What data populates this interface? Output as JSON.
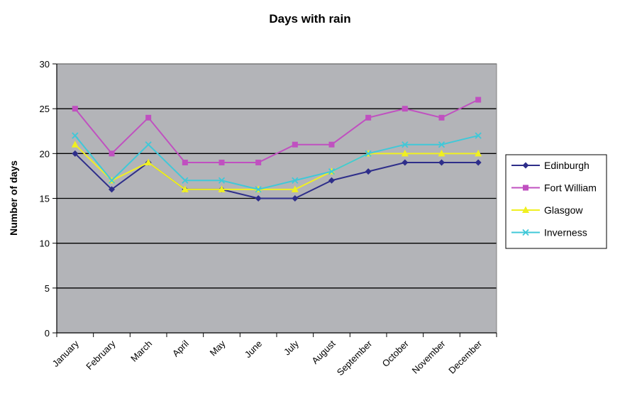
{
  "chart_data": {
    "type": "line",
    "title": "Days with rain",
    "xlabel": "",
    "ylabel": "Number of days",
    "ylim": [
      0,
      30
    ],
    "yticks": [
      0,
      5,
      10,
      15,
      20,
      25,
      30
    ],
    "grid": "horizontal",
    "legend_position": "right",
    "plot_background": "#b3b4b8",
    "categories": [
      "January",
      "February",
      "March",
      "April",
      "May",
      "June",
      "July",
      "August",
      "September",
      "October",
      "November",
      "December"
    ],
    "series": [
      {
        "name": "Edinburgh",
        "color": "#2e2e8a",
        "marker": "diamond",
        "values": [
          20,
          16,
          19,
          16,
          16,
          15,
          15,
          17,
          18,
          19,
          19,
          19
        ]
      },
      {
        "name": "Fort William",
        "color": "#c050c0",
        "marker": "square",
        "values": [
          25,
          20,
          24,
          19,
          19,
          19,
          21,
          21,
          24,
          25,
          24,
          26
        ]
      },
      {
        "name": "Glasgow",
        "color": "#f0f020",
        "marker": "triangle",
        "values": [
          21,
          17,
          19,
          16,
          16,
          16,
          16,
          18,
          20,
          20,
          20,
          20
        ]
      },
      {
        "name": "Inverness",
        "color": "#40c8d8",
        "marker": "x",
        "values": [
          22,
          17,
          21,
          17,
          17,
          16,
          17,
          18,
          20,
          21,
          21,
          22
        ]
      }
    ]
  }
}
